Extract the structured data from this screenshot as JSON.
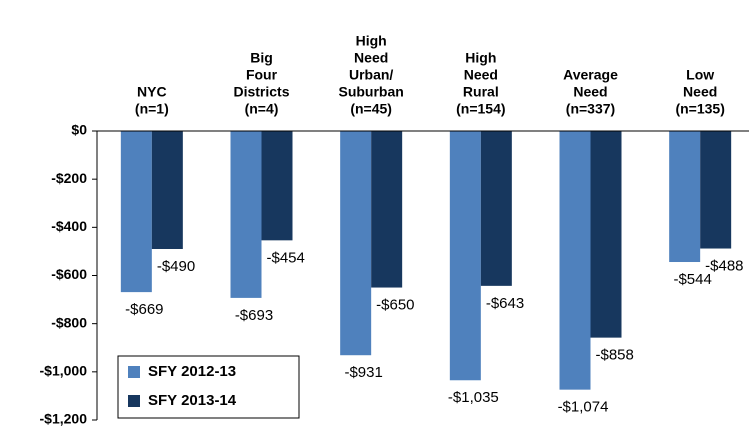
{
  "chart_data": {
    "type": "bar",
    "categories": [
      [
        "NYC",
        "(n=1)"
      ],
      [
        "Big",
        "Four",
        "Districts",
        "(n=4)"
      ],
      [
        "High",
        "Need",
        "Urban/",
        "Suburban",
        "(n=45)"
      ],
      [
        "High",
        "Need",
        "Rural",
        "(n=154)"
      ],
      [
        "Average",
        "Need",
        "(n=337)"
      ],
      [
        "Low",
        "Need",
        "(n=135)"
      ]
    ],
    "series": [
      {
        "name": "SFY 2012-13",
        "color": "#4f81bd",
        "values": [
          -669,
          -693,
          -931,
          -1035,
          -1074,
          -544
        ],
        "value_labels": [
          "-$669",
          "-$693",
          "-$931",
          "-$1,035",
          "-$1,074",
          "-$544"
        ]
      },
      {
        "name": "SFY 2013-14",
        "color": "#17375e",
        "values": [
          -490,
          -454,
          -650,
          -643,
          -858,
          -488
        ],
        "value_labels": [
          "-$490",
          "-$454",
          "-$650",
          "-$643",
          "-$858",
          "-$488"
        ]
      }
    ],
    "ylim": [
      -1200,
      0
    ],
    "yticks": [
      {
        "value": 0,
        "label": "$0"
      },
      {
        "value": -200,
        "label": "-$200"
      },
      {
        "value": -400,
        "label": "-$400"
      },
      {
        "value": -600,
        "label": "-$600"
      },
      {
        "value": -800,
        "label": "-$800"
      },
      {
        "value": -1000,
        "label": "-$1,000"
      },
      {
        "value": -1200,
        "label": "-$1,200"
      }
    ],
    "legend": "bottom-left"
  }
}
